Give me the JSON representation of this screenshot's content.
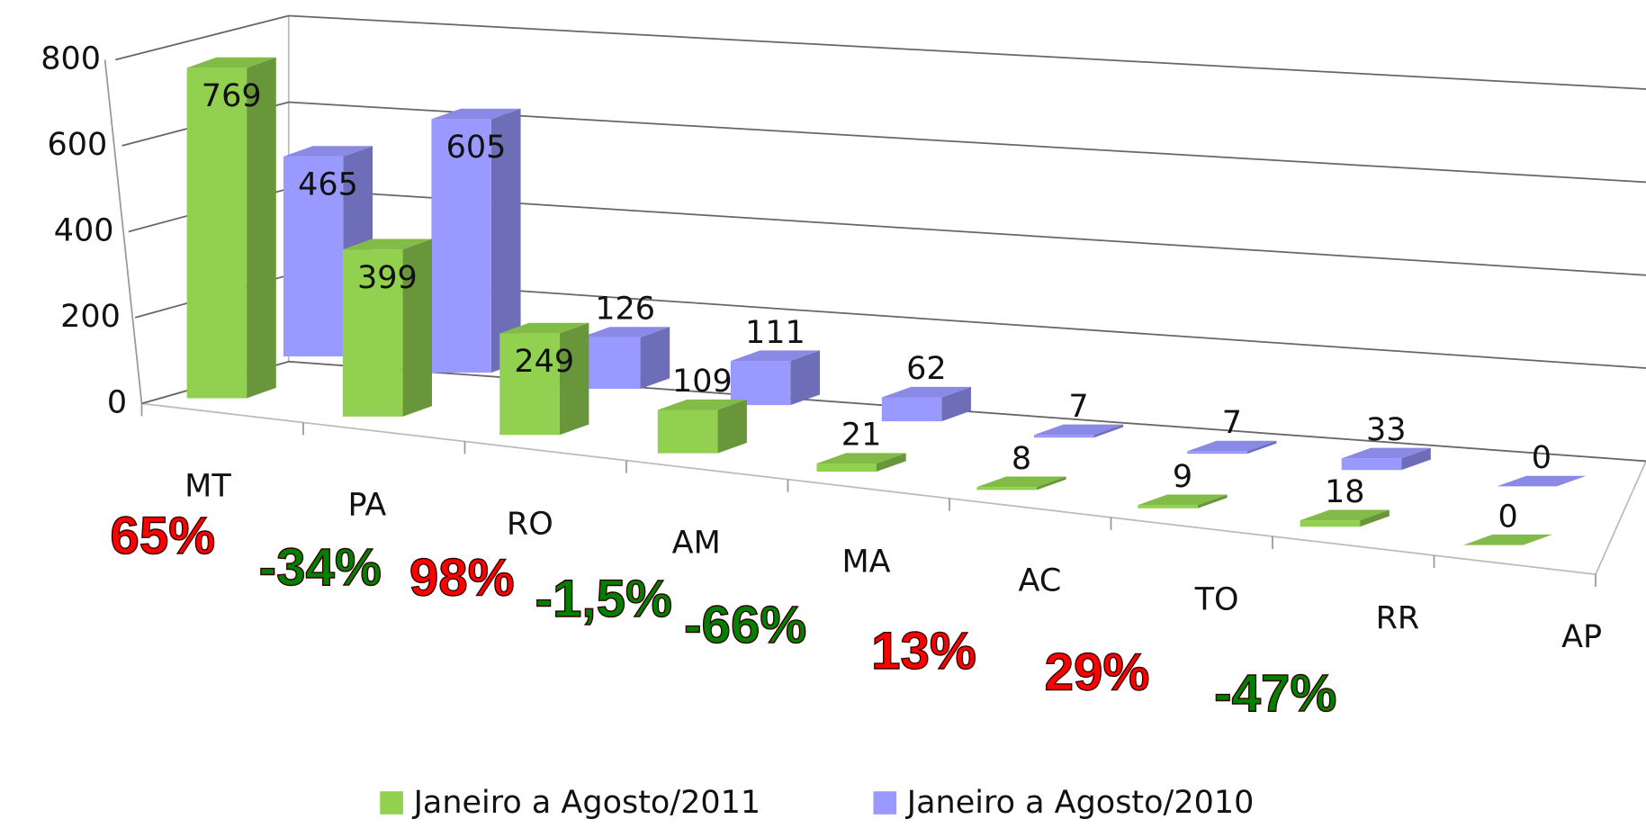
{
  "chart_data": {
    "type": "bar3d",
    "categories": [
      "MT",
      "PA",
      "RO",
      "AM",
      "MA",
      "AC",
      "TO",
      "RR",
      "AP"
    ],
    "series": [
      {
        "name": "Janeiro a Agosto/2011",
        "color": "#92d050",
        "values": [
          769,
          399,
          249,
          109,
          21,
          8,
          9,
          18,
          0
        ]
      },
      {
        "name": "Janeiro a Agosto/2010",
        "color": "#9999ff",
        "values": [
          465,
          605,
          126,
          111,
          62,
          7,
          7,
          33,
          0
        ]
      }
    ],
    "annotations": [
      {
        "text": "65%",
        "color": "#ff0000"
      },
      {
        "text": "-34%",
        "color": "#008000"
      },
      {
        "text": "98%",
        "color": "#ff0000"
      },
      {
        "text": "-1,5%",
        "color": "#008000"
      },
      {
        "text": "-66%",
        "color": "#008000"
      },
      {
        "text": "13%",
        "color": "#ff0000"
      },
      {
        "text": "29%",
        "color": "#ff0000"
      },
      {
        "text": "-47%",
        "color": "#008000"
      }
    ],
    "ylim": [
      0,
      800
    ],
    "yticks": [
      0,
      200,
      400,
      600,
      800
    ],
    "grid": true,
    "legend": "bottom"
  }
}
